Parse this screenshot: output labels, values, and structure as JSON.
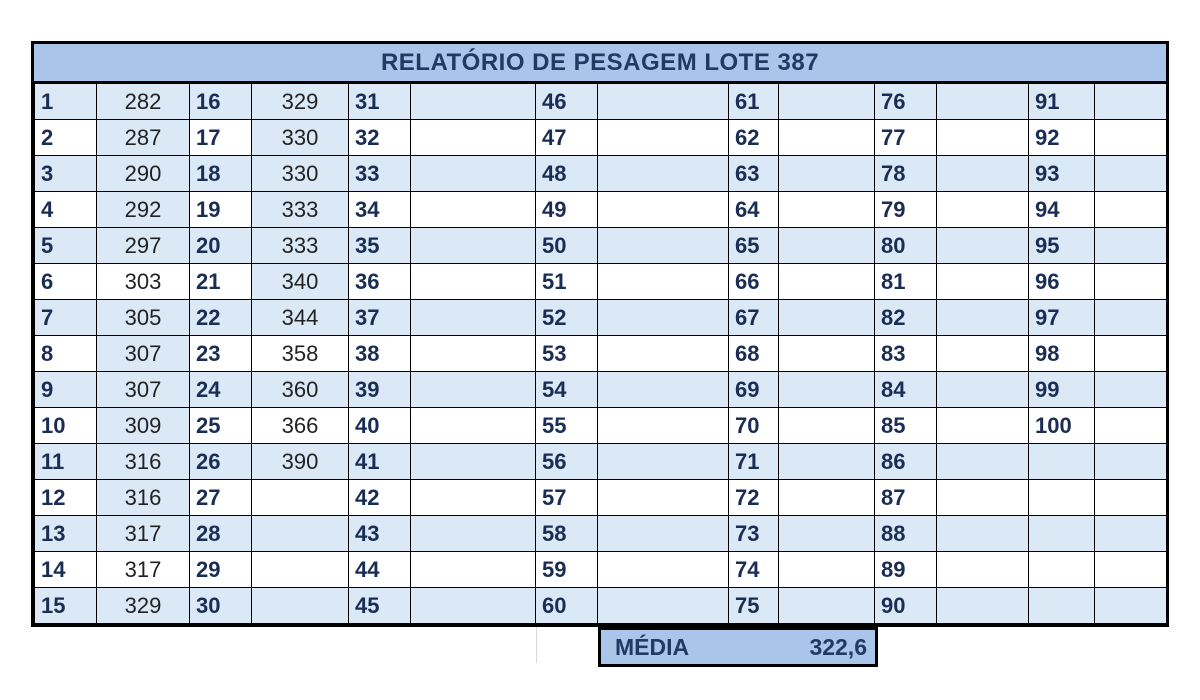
{
  "title": "RELATÓRIO DE PESAGEM LOTE 387",
  "rows": [
    {
      "cells": [
        [
          "1",
          "282"
        ],
        [
          "16",
          "329"
        ],
        [
          "31",
          ""
        ],
        [
          "46",
          ""
        ],
        [
          "61",
          ""
        ],
        [
          "76",
          ""
        ],
        [
          "91",
          ""
        ]
      ]
    },
    {
      "cells": [
        [
          "2",
          "287"
        ],
        [
          "17",
          "330"
        ],
        [
          "32",
          ""
        ],
        [
          "47",
          ""
        ],
        [
          "62",
          ""
        ],
        [
          "77",
          ""
        ],
        [
          "92",
          ""
        ]
      ]
    },
    {
      "cells": [
        [
          "3",
          "290"
        ],
        [
          "18",
          "330"
        ],
        [
          "33",
          ""
        ],
        [
          "48",
          ""
        ],
        [
          "63",
          ""
        ],
        [
          "78",
          ""
        ],
        [
          "93",
          ""
        ]
      ]
    },
    {
      "cells": [
        [
          "4",
          "292"
        ],
        [
          "19",
          "333"
        ],
        [
          "34",
          ""
        ],
        [
          "49",
          ""
        ],
        [
          "64",
          ""
        ],
        [
          "79",
          ""
        ],
        [
          "94",
          ""
        ]
      ]
    },
    {
      "cells": [
        [
          "5",
          "297"
        ],
        [
          "20",
          "333"
        ],
        [
          "35",
          ""
        ],
        [
          "50",
          ""
        ],
        [
          "65",
          ""
        ],
        [
          "80",
          ""
        ],
        [
          "95",
          ""
        ]
      ]
    },
    {
      "cells": [
        [
          "6",
          "303"
        ],
        [
          "21",
          "340"
        ],
        [
          "36",
          ""
        ],
        [
          "51",
          ""
        ],
        [
          "66",
          ""
        ],
        [
          "81",
          ""
        ],
        [
          "96",
          ""
        ]
      ]
    },
    {
      "cells": [
        [
          "7",
          "305"
        ],
        [
          "22",
          "344"
        ],
        [
          "37",
          ""
        ],
        [
          "52",
          ""
        ],
        [
          "67",
          ""
        ],
        [
          "82",
          ""
        ],
        [
          "97",
          ""
        ]
      ]
    },
    {
      "cells": [
        [
          "8",
          "307"
        ],
        [
          "23",
          "358"
        ],
        [
          "38",
          ""
        ],
        [
          "53",
          ""
        ],
        [
          "68",
          ""
        ],
        [
          "83",
          ""
        ],
        [
          "98",
          ""
        ]
      ]
    },
    {
      "cells": [
        [
          "9",
          "307"
        ],
        [
          "24",
          "360"
        ],
        [
          "39",
          ""
        ],
        [
          "54",
          ""
        ],
        [
          "69",
          ""
        ],
        [
          "84",
          ""
        ],
        [
          "99",
          ""
        ]
      ]
    },
    {
      "cells": [
        [
          "10",
          "309"
        ],
        [
          "25",
          "366"
        ],
        [
          "40",
          ""
        ],
        [
          "55",
          ""
        ],
        [
          "70",
          ""
        ],
        [
          "85",
          ""
        ],
        [
          "100",
          ""
        ]
      ]
    },
    {
      "cells": [
        [
          "11",
          "316"
        ],
        [
          "26",
          "390"
        ],
        [
          "41",
          ""
        ],
        [
          "56",
          ""
        ],
        [
          "71",
          ""
        ],
        [
          "86",
          ""
        ],
        [
          "",
          ""
        ]
      ]
    },
    {
      "cells": [
        [
          "12",
          "316"
        ],
        [
          "27",
          ""
        ],
        [
          "42",
          ""
        ],
        [
          "57",
          ""
        ],
        [
          "72",
          ""
        ],
        [
          "87",
          ""
        ],
        [
          "",
          ""
        ]
      ]
    },
    {
      "cells": [
        [
          "13",
          "317"
        ],
        [
          "28",
          ""
        ],
        [
          "43",
          ""
        ],
        [
          "58",
          ""
        ],
        [
          "73",
          ""
        ],
        [
          "88",
          ""
        ],
        [
          "",
          ""
        ]
      ]
    },
    {
      "cells": [
        [
          "14",
          "317"
        ],
        [
          "29",
          ""
        ],
        [
          "44",
          ""
        ],
        [
          "59",
          ""
        ],
        [
          "74",
          ""
        ],
        [
          "89",
          ""
        ],
        [
          "",
          ""
        ]
      ]
    },
    {
      "cells": [
        [
          "15",
          "329"
        ],
        [
          "30",
          ""
        ],
        [
          "45",
          ""
        ],
        [
          "60",
          ""
        ],
        [
          "75",
          ""
        ],
        [
          "90",
          ""
        ],
        [
          "",
          ""
        ]
      ]
    }
  ],
  "summary": {
    "label": "MÉDIA",
    "value": "322,6"
  },
  "colors": {
    "header_bg": "#a9c6ea",
    "band_bg": "#dbe8f6",
    "text_dark": "#1f3a63"
  }
}
